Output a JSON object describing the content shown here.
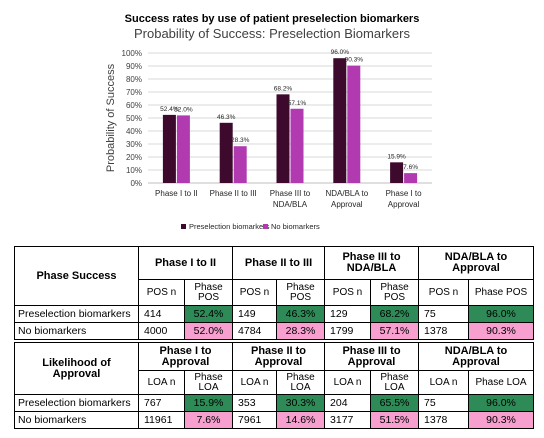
{
  "chart_data": {
    "type": "bar",
    "title": "Success rates by use of patient preselection biomarkers",
    "subtitle": "Probability of Success: Preselection Biomarkers",
    "xlabel": "",
    "ylabel": "Probability of Success",
    "ylim": [
      0,
      100
    ],
    "yticks": [
      "0%",
      "10%",
      "20%",
      "30%",
      "40%",
      "50%",
      "60%",
      "70%",
      "80%",
      "90%",
      "100%"
    ],
    "categories": [
      [
        "Phase I to II"
      ],
      [
        "Phase II to III"
      ],
      [
        "Phase III to",
        "NDA/BLA"
      ],
      [
        "NDA/BLA to",
        "Approval"
      ],
      [
        "Phase I to",
        "Approval"
      ]
    ],
    "series": [
      {
        "name": "Preselection biomarkers",
        "color": "#3d0a2e",
        "values": [
          52.4,
          46.3,
          68.2,
          96.0,
          15.9
        ],
        "labels": [
          "52.4%",
          "46.3%",
          "68.2%",
          "96.0%",
          "15.9%"
        ]
      },
      {
        "name": "No biomarkers",
        "color": "#b23ab0",
        "values": [
          52.0,
          28.3,
          57.1,
          90.3,
          7.6
        ],
        "labels": [
          "52.0%",
          "28.3%",
          "57.1%",
          "90.3%",
          "7.6%"
        ]
      }
    ],
    "grid": true,
    "legend": "bottom"
  },
  "table1": {
    "row_header": "Phase Success",
    "groups": [
      "Phase I to II",
      "Phase II to III",
      "Phase III to NDA/BLA",
      "NDA/BLA to Approval"
    ],
    "sub_n": "POS n",
    "sub_p": "Phase POS",
    "rows": [
      {
        "label": "Preselection biomarkers",
        "cells": [
          "414",
          "52.4%",
          "149",
          "46.3%",
          "129",
          "68.2%",
          "75",
          "96.0%"
        ]
      },
      {
        "label": "No biomarkers",
        "cells": [
          "4000",
          "52.0%",
          "4784",
          "28.3%",
          "1799",
          "57.1%",
          "1378",
          "90.3%"
        ]
      }
    ]
  },
  "table2": {
    "row_header": "Likelihood of Approval",
    "groups": [
      "Phase I to Approval",
      "Phase II to Approval",
      "Phase III to Approval",
      "NDA/BLA to Approval"
    ],
    "sub_n": "LOA n",
    "sub_p": "Phase LOA",
    "rows": [
      {
        "label": "Preselection biomarkers",
        "cells": [
          "767",
          "15.9%",
          "353",
          "30.3%",
          "204",
          "65.5%",
          "75",
          "96.0%"
        ]
      },
      {
        "label": "No biomarkers",
        "cells": [
          "11961",
          "7.6%",
          "7961",
          "14.6%",
          "3177",
          "51.5%",
          "1378",
          "90.3%"
        ]
      }
    ]
  },
  "colors": {
    "highlight_green": "#2e8b57",
    "highlight_pink": "#f7a0d0"
  }
}
